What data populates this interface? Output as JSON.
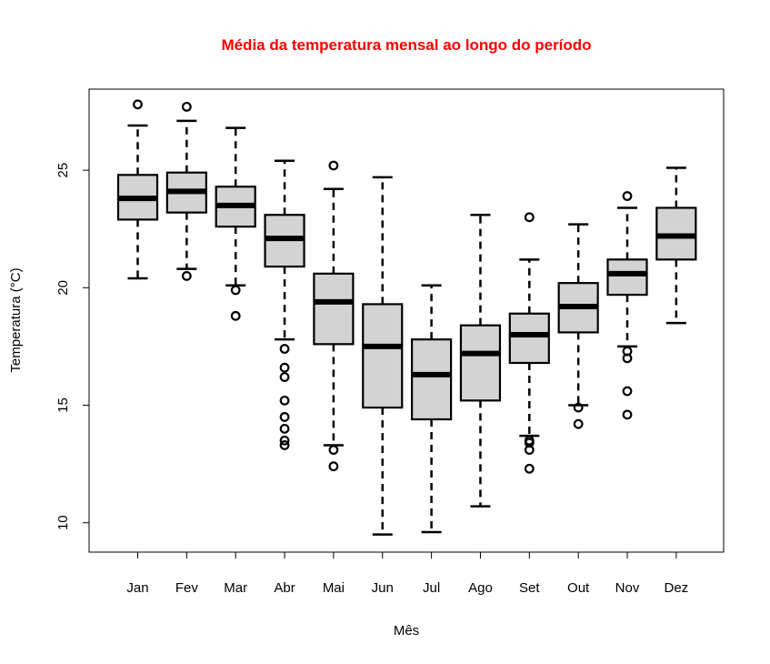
{
  "chart_data": {
    "type": "boxplot",
    "title": "Média da temperatura mensal ao longo do período",
    "title_color": "#ff0000",
    "xlabel": "Mês",
    "ylabel": "Temperatura (°C)",
    "box_fill": "#d3d3d3",
    "ylim": [
      8.75,
      28.45
    ],
    "yticks": [
      10,
      15,
      20,
      25
    ],
    "categories": [
      "Jan",
      "Fev",
      "Mar",
      "Abr",
      "Mai",
      "Jun",
      "Jul",
      "Ago",
      "Set",
      "Out",
      "Nov",
      "Dez"
    ],
    "boxes": [
      {
        "whisker_low": 20.4,
        "q1": 22.9,
        "median": 23.8,
        "q3": 24.8,
        "whisker_high": 26.9,
        "outliers": [
          27.8
        ]
      },
      {
        "whisker_low": 20.8,
        "q1": 23.2,
        "median": 24.1,
        "q3": 24.9,
        "whisker_high": 27.1,
        "outliers": [
          27.7,
          20.5
        ]
      },
      {
        "whisker_low": 20.1,
        "q1": 22.6,
        "median": 23.5,
        "q3": 24.3,
        "whisker_high": 26.8,
        "outliers": [
          19.9,
          18.8
        ]
      },
      {
        "whisker_low": 17.8,
        "q1": 20.9,
        "median": 22.1,
        "q3": 23.1,
        "whisker_high": 25.4,
        "outliers": [
          17.4,
          16.6,
          16.2,
          15.2,
          14.5,
          14.0,
          13.5,
          13.3
        ]
      },
      {
        "whisker_low": 13.3,
        "q1": 17.6,
        "median": 19.4,
        "q3": 20.6,
        "whisker_high": 24.2,
        "outliers": [
          25.2,
          13.1,
          12.4
        ]
      },
      {
        "whisker_low": 9.5,
        "q1": 14.9,
        "median": 17.5,
        "q3": 19.3,
        "whisker_high": 24.7,
        "outliers": []
      },
      {
        "whisker_low": 9.6,
        "q1": 14.4,
        "median": 16.3,
        "q3": 17.8,
        "whisker_high": 20.1,
        "outliers": []
      },
      {
        "whisker_low": 10.7,
        "q1": 15.2,
        "median": 17.2,
        "q3": 18.4,
        "whisker_high": 23.1,
        "outliers": []
      },
      {
        "whisker_low": 13.7,
        "q1": 16.8,
        "median": 18.0,
        "q3": 18.9,
        "whisker_high": 21.2,
        "outliers": [
          23.0,
          13.5,
          13.4,
          13.1,
          12.3
        ]
      },
      {
        "whisker_low": 15.0,
        "q1": 18.1,
        "median": 19.2,
        "q3": 20.2,
        "whisker_high": 22.7,
        "outliers": [
          14.9,
          14.2
        ]
      },
      {
        "whisker_low": 17.5,
        "q1": 19.7,
        "median": 20.6,
        "q3": 21.2,
        "whisker_high": 23.4,
        "outliers": [
          23.9,
          17.3,
          17.0,
          15.6,
          14.6
        ]
      },
      {
        "whisker_low": 18.5,
        "q1": 21.2,
        "median": 22.2,
        "q3": 23.4,
        "whisker_high": 25.1,
        "outliers": []
      }
    ]
  }
}
